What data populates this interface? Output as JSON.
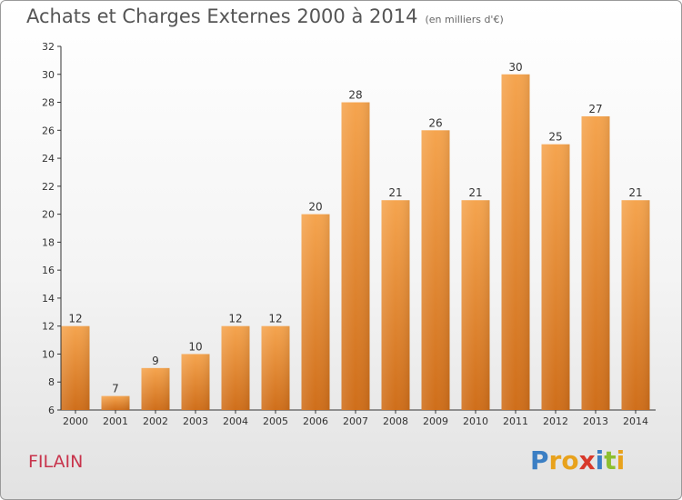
{
  "header": {
    "title": "Achats et Charges Externes 2000 à 2014",
    "unit": "(en milliers d'€)"
  },
  "commune": "FILAIN",
  "logo": {
    "text": "Proxiti",
    "colors": [
      "#3b7fc4",
      "#e8a21c",
      "#e8a21c",
      "#d8392b",
      "#3b7fc4",
      "#8dbf2f",
      "#e8a21c"
    ]
  },
  "chart_data": {
    "type": "bar",
    "title": "Achats et Charges Externes 2000 à 2014",
    "subtitle": "(en milliers d'€)",
    "categories": [
      "2000",
      "2001",
      "2002",
      "2003",
      "2004",
      "2005",
      "2006",
      "2007",
      "2008",
      "2009",
      "2010",
      "2011",
      "2012",
      "2013",
      "2014"
    ],
    "values": [
      12,
      7,
      9,
      10,
      12,
      12,
      20,
      28,
      21,
      26,
      21,
      30,
      25,
      27,
      21
    ],
    "ylim": [
      6,
      32
    ],
    "yticks": [
      6,
      8,
      10,
      12,
      14,
      16,
      18,
      20,
      22,
      24,
      26,
      28,
      30,
      32
    ],
    "grid": false,
    "bar_color_top": "#f5a44e",
    "bar_color_bottom": "#cf6e1a"
  }
}
